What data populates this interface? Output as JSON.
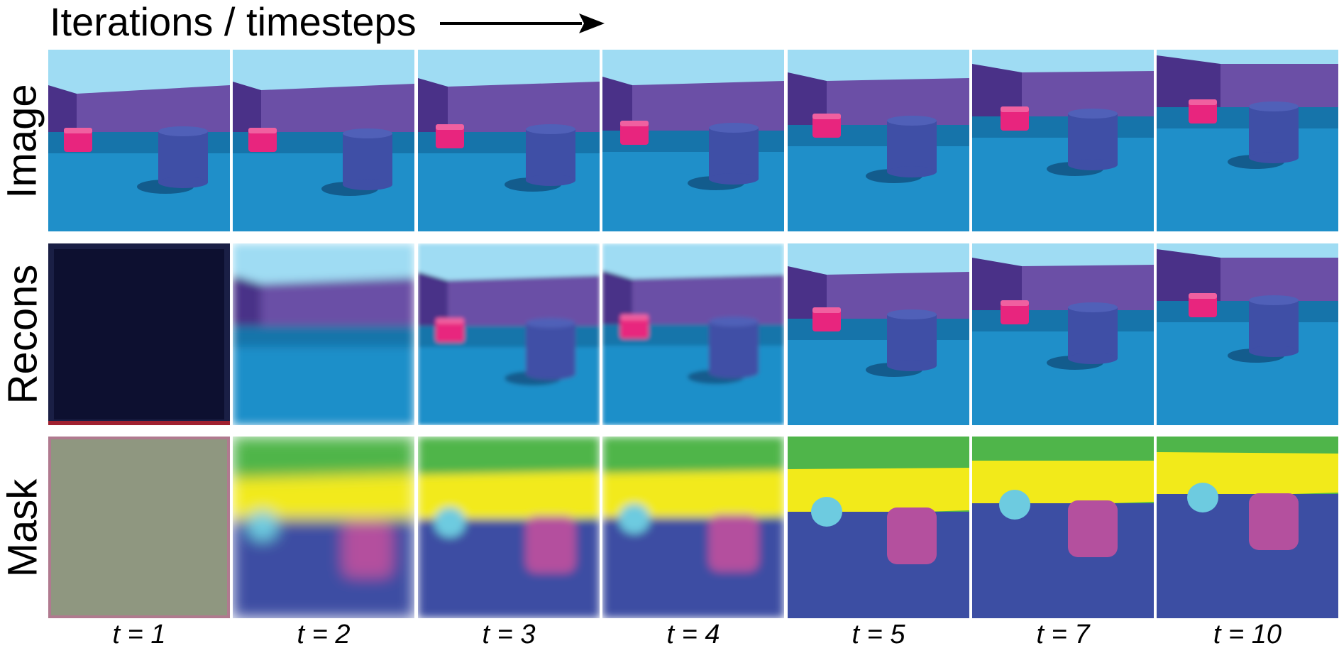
{
  "header": {
    "title": "Iterations / timesteps"
  },
  "rows": [
    {
      "label": "Image"
    },
    {
      "label": "Recons"
    },
    {
      "label": "Mask"
    }
  ],
  "timesteps": [
    "t = 1",
    "t = 2",
    "t = 3",
    "t = 4",
    "t = 5",
    "t = 7",
    "t = 10"
  ],
  "colors": {
    "sky": "#9fdcf3",
    "wall": "#6b4fa6",
    "wall_side": "#4a3188",
    "floor": "#1f8fc9",
    "floor_dark": "#0f5f8f",
    "pink_object": "#e8257e",
    "blue_cylinder": "#3f4fa6",
    "mask_yellow": "#f2ea1a",
    "mask_green": "#4fb54a",
    "mask_blue": "#3c4ea3",
    "mask_cyan": "#6dcbe0",
    "mask_magenta": "#b4509e"
  }
}
